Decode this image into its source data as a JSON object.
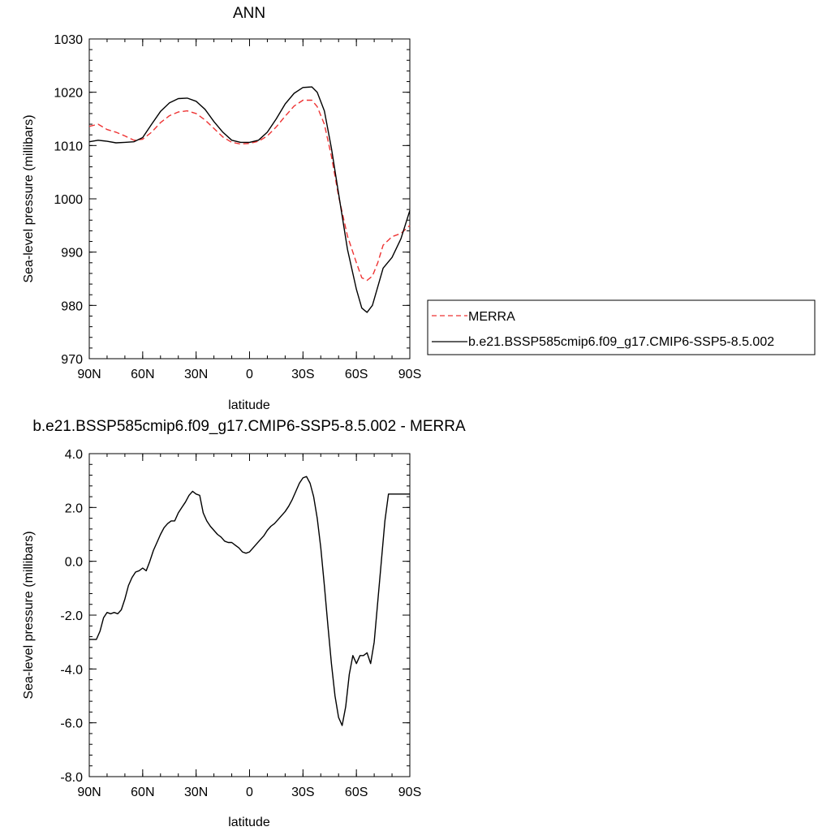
{
  "chart_data": [
    {
      "type": "line",
      "title": "ANN",
      "xlabel": "latitude",
      "ylabel": "Sea-level pressure (millibars)",
      "xlim": [
        -90,
        90
      ],
      "ylim": [
        970,
        1030
      ],
      "x_ticks": [
        -90,
        -60,
        -30,
        0,
        30,
        60,
        90
      ],
      "x_tick_labels": [
        "90N",
        "60N",
        "30N",
        "0",
        "30S",
        "60S",
        "90S"
      ],
      "y_ticks": [
        970,
        980,
        990,
        1000,
        1010,
        1020,
        1030
      ],
      "y_tick_labels": [
        "970",
        "980",
        "990",
        "1000",
        "1010",
        "1020",
        "1030"
      ],
      "grid": false,
      "legend_position": "right",
      "series": [
        {
          "name": "MERRA",
          "color": "#ee3333",
          "dash": "dashed",
          "x": [
            -90,
            -85,
            -80,
            -75,
            -70,
            -65,
            -60,
            -55,
            -50,
            -45,
            -40,
            -35,
            -30,
            -25,
            -20,
            -15,
            -10,
            -5,
            0,
            5,
            10,
            15,
            20,
            25,
            30,
            35,
            38,
            42,
            46,
            50,
            55,
            60,
            63,
            66,
            69,
            72,
            75,
            80,
            85,
            90
          ],
          "y": [
            1013.6,
            1014.0,
            1013.0,
            1012.5,
            1011.8,
            1011.0,
            1011.2,
            1012.5,
            1014.3,
            1015.6,
            1016.3,
            1016.5,
            1016.0,
            1014.8,
            1013.2,
            1011.6,
            1010.6,
            1010.3,
            1010.4,
            1010.8,
            1011.8,
            1013.5,
            1015.5,
            1017.4,
            1018.5,
            1018.5,
            1017.3,
            1014.0,
            1008.0,
            1000.5,
            993.0,
            988.0,
            985.2,
            984.7,
            985.5,
            988.0,
            991.3,
            992.9,
            993.5,
            995.0
          ]
        },
        {
          "name": "b.e21.BSSP585cmip6.f09_g17.CMIP6-SSP5-8.5.002",
          "color": "#000000",
          "dash": "solid",
          "x": [
            -90,
            -85,
            -80,
            -75,
            -70,
            -65,
            -60,
            -55,
            -50,
            -45,
            -40,
            -35,
            -30,
            -25,
            -20,
            -15,
            -10,
            -5,
            0,
            5,
            10,
            15,
            20,
            25,
            30,
            35,
            38,
            42,
            46,
            50,
            55,
            60,
            63,
            66,
            69,
            72,
            75,
            80,
            85,
            90
          ],
          "y": [
            1010.7,
            1011.0,
            1010.8,
            1010.5,
            1010.6,
            1010.7,
            1011.5,
            1014.0,
            1016.4,
            1018.0,
            1018.8,
            1018.9,
            1018.3,
            1016.8,
            1014.5,
            1012.5,
            1011.0,
            1010.6,
            1010.6,
            1011.0,
            1012.5,
            1015.0,
            1017.8,
            1019.8,
            1020.9,
            1021.0,
            1020.0,
            1016.5,
            1009.5,
            1001.0,
            990.5,
            983.0,
            979.5,
            978.7,
            980.0,
            983.5,
            987.0,
            989.0,
            992.5,
            997.8
          ]
        }
      ]
    },
    {
      "type": "line",
      "title": "b.e21.BSSP585cmip6.f09_g17.CMIP6-SSP5-8.5.002 - MERRA",
      "xlabel": "latitude",
      "ylabel": "Sea-level pressure (millibars)",
      "xlim": [
        -90,
        90
      ],
      "ylim": [
        -8,
        4
      ],
      "x_ticks": [
        -90,
        -60,
        -30,
        0,
        30,
        60,
        90
      ],
      "x_tick_labels": [
        "90N",
        "60N",
        "30N",
        "0",
        "30S",
        "60S",
        "90S"
      ],
      "y_ticks": [
        -8,
        -6,
        -4,
        -2,
        0,
        2,
        4
      ],
      "y_tick_labels": [
        "-8.0",
        "-6.0",
        "-4.0",
        "-2.0",
        "0.0",
        "2.0",
        "4.0"
      ],
      "grid": false,
      "series": [
        {
          "color": "#000000",
          "dash": "solid",
          "x": [
            -90,
            -86,
            -84,
            -82,
            -80,
            -78,
            -76,
            -74,
            -72,
            -70,
            -68,
            -66,
            -64,
            -62,
            -60,
            -58,
            -56,
            -54,
            -52,
            -50,
            -48,
            -46,
            -44,
            -42,
            -40,
            -38,
            -36,
            -34,
            -32,
            -30,
            -28,
            -26,
            -24,
            -22,
            -20,
            -18,
            -16,
            -14,
            -12,
            -10,
            -8,
            -6,
            -4,
            -2,
            0,
            2,
            4,
            6,
            8,
            10,
            12,
            14,
            16,
            18,
            20,
            22,
            24,
            26,
            28,
            30,
            32,
            34,
            36,
            38,
            40,
            42,
            44,
            46,
            48,
            50,
            52,
            54,
            56,
            58,
            60,
            62,
            64,
            66,
            68,
            70,
            72,
            74,
            76,
            78,
            80,
            82,
            84,
            86,
            88,
            90
          ],
          "y": [
            -2.9,
            -2.9,
            -2.6,
            -2.1,
            -1.9,
            -1.95,
            -1.9,
            -1.95,
            -1.8,
            -1.4,
            -0.9,
            -0.6,
            -0.4,
            -0.35,
            -0.25,
            -0.35,
            0.0,
            0.4,
            0.7,
            1.0,
            1.25,
            1.4,
            1.5,
            1.5,
            1.8,
            2.0,
            2.2,
            2.45,
            2.6,
            2.5,
            2.45,
            1.8,
            1.5,
            1.3,
            1.15,
            1.0,
            0.9,
            0.75,
            0.7,
            0.7,
            0.6,
            0.5,
            0.35,
            0.3,
            0.35,
            0.5,
            0.65,
            0.8,
            0.95,
            1.15,
            1.3,
            1.4,
            1.55,
            1.7,
            1.85,
            2.05,
            2.3,
            2.6,
            2.9,
            3.1,
            3.15,
            2.9,
            2.4,
            1.6,
            0.5,
            -0.9,
            -2.4,
            -3.8,
            -5.0,
            -5.8,
            -6.1,
            -5.4,
            -4.2,
            -3.5,
            -3.8,
            -3.5,
            -3.5,
            -3.4,
            -3.8,
            -3.0,
            -1.5,
            0.0,
            1.5,
            2.5,
            2.5,
            2.5,
            2.5,
            2.5,
            2.5,
            2.5
          ]
        }
      ]
    }
  ]
}
